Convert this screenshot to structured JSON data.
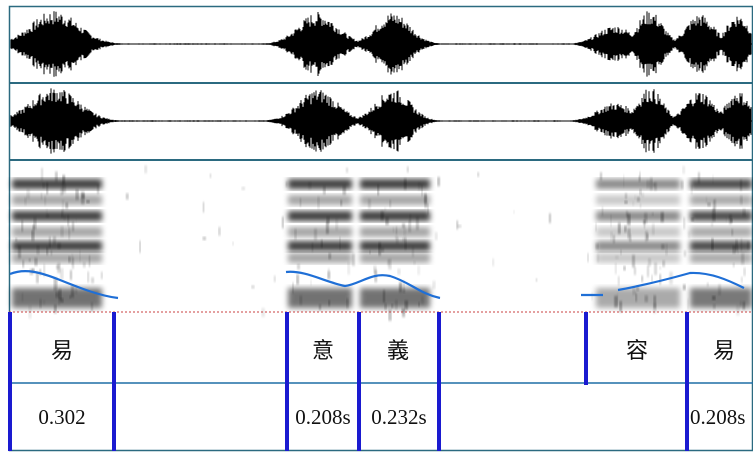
{
  "colors": {
    "waveform": "#000000",
    "panel_separator": "#2b6a80",
    "pitch": "#1f6fd6",
    "boundary": "#1a1ad0",
    "tier_line": "#1f6fa6"
  },
  "tiers": {
    "syllables": [
      {
        "label": "易"
      },
      {
        "label": "意"
      },
      {
        "label": "義"
      },
      {
        "label": "容"
      },
      {
        "label": "易"
      }
    ],
    "durations": [
      {
        "value": "0.302"
      },
      {
        "value": "0.208s"
      },
      {
        "value": "0.232s"
      },
      {
        "value": "0.208s"
      }
    ]
  }
}
